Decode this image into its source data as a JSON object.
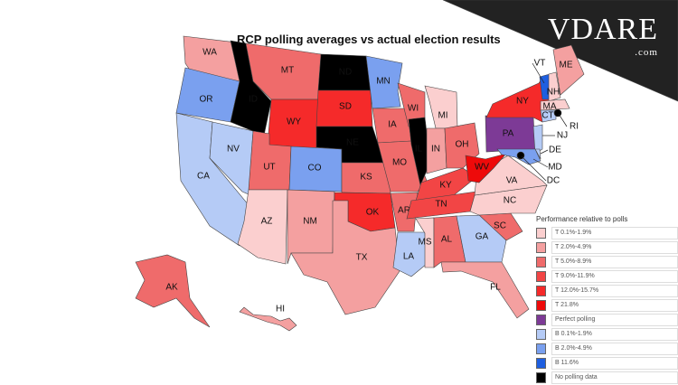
{
  "title": "RCP polling averages vs actual election results",
  "logo": {
    "name": "VDARE",
    "suffix": ".com"
  },
  "colors": {
    "t1": "#fbcfcf",
    "t2": "#f4a0a0",
    "t5": "#ef6b6b",
    "t9": "#f24545",
    "t12": "#f52a2a",
    "t21": "#ee0a0a",
    "perfect": "#7d3a96",
    "b1": "#b5cbf6",
    "b2": "#7aa0ef",
    "b11": "#1f5fe0",
    "none": "#000000"
  },
  "legend": {
    "title": "Performance relative to polls",
    "items": [
      {
        "label": "T 0.1%-1.9%",
        "key": "t1"
      },
      {
        "label": "T 2.0%-4.9%",
        "key": "t2"
      },
      {
        "label": "T 5.0%-8.9%",
        "key": "t5"
      },
      {
        "label": "T 9.0%-11.9%",
        "key": "t9"
      },
      {
        "label": "T 12.0%-15.7%",
        "key": "t12"
      },
      {
        "label": "T 21.8%",
        "key": "t21"
      },
      {
        "label": "Perfect polling",
        "key": "perfect"
      },
      {
        "label": "B 0.1%-1.9%",
        "key": "b1"
      },
      {
        "label": "B 2.0%-4.9%",
        "key": "b2"
      },
      {
        "label": "B 11.6%",
        "key": "b11"
      },
      {
        "label": "No polling data",
        "key": "none"
      }
    ]
  },
  "states": {
    "WA": "t2",
    "OR": "b2",
    "CA": "b1",
    "NV": "b1",
    "ID": "none",
    "MT": "t5",
    "WY": "t12",
    "UT": "t5",
    "AZ": "t1",
    "CO": "b2",
    "NM": "t2",
    "ND": "none",
    "SD": "t12",
    "NE": "none",
    "KS": "t5",
    "OK": "t12",
    "TX": "t2",
    "MN": "b2",
    "IA": "t5",
    "MO": "t5",
    "AR": "t5",
    "LA": "b1",
    "WI": "t5",
    "IL": "none",
    "MI": "t1",
    "IN": "t2",
    "OH": "t5",
    "KY": "t9",
    "TN": "t9",
    "MS": "t1",
    "AL": "t5",
    "GA": "b1",
    "FL": "t2",
    "SC": "t5",
    "NC": "t1",
    "VA": "t1",
    "WV": "t21",
    "PA": "perfect",
    "NY": "t12",
    "VT": "b11",
    "NH": "t1",
    "ME": "t2",
    "MA": "t1",
    "CT": "b1",
    "RI": "none",
    "NJ": "b1",
    "DE": "b1",
    "MD": "b2",
    "DC": "none",
    "AK": "t5",
    "HI": "t2"
  }
}
